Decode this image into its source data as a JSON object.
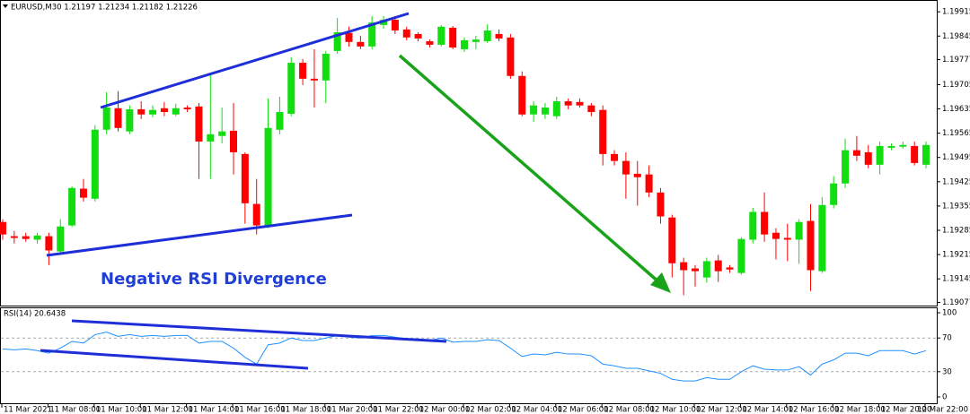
{
  "chart_data": [
    {
      "type": "candlestick",
      "title": "EURUSD,M30  1.21197 1.21234 1.21182 1.21226",
      "annotation": "Negative RSI Divergence",
      "categories": [
        "11 Mar 2021",
        null,
        null,
        null,
        "11 Mar 08:00",
        null,
        null,
        null,
        "11 Mar 10:00",
        null,
        null,
        null,
        "11 Mar 12:00",
        null,
        null,
        null,
        "11 Mar 14:00",
        null,
        null,
        null,
        "11 Mar 16:00",
        null,
        null,
        null,
        "11 Mar 18:00",
        null,
        null,
        null,
        "11 Mar 20:00",
        null,
        null,
        null,
        "11 Mar 22:00",
        null,
        null,
        null,
        "12 Mar 00:00",
        null,
        null,
        null,
        "12 Mar 02:00",
        null,
        null,
        null,
        "12 Mar 04:00",
        null,
        null,
        null,
        "12 Mar 06:00",
        null,
        null,
        null,
        "12 Mar 08:00",
        null,
        null,
        null,
        "12 Mar 10:00",
        null,
        null,
        null,
        "12 Mar 12:00",
        null,
        null,
        null,
        "12 Mar 14:00",
        null,
        null,
        null,
        "12 Mar 16:00",
        null,
        null,
        null,
        "12 Mar 18:00",
        null,
        null,
        null,
        "12 Mar 20:00",
        null,
        null,
        null,
        "12 Mar 22:00"
      ],
      "open": [
        1.19309,
        1.19268,
        1.19268,
        1.19258,
        1.19268,
        1.19224,
        1.19299,
        1.19405,
        1.19376,
        1.19575,
        1.19637,
        1.1957,
        1.19634,
        1.19619,
        1.19637,
        1.19619,
        1.19639,
        1.19642,
        1.19541,
        1.19557,
        1.19572,
        1.19505,
        1.19361,
        1.19299,
        1.19575,
        1.19621,
        1.19768,
        1.19722,
        1.19717,
        1.19802,
        1.19854,
        1.19828,
        1.19815,
        1.19877,
        1.19892,
        1.19864,
        1.19851,
        1.1983,
        1.1982,
        1.19869,
        1.19807,
        1.19828,
        1.1983,
        1.19851,
        1.19841,
        1.1973,
        1.19619,
        1.19619,
        1.19614,
        1.19657,
        1.19655,
        1.19645,
        1.19632,
        1.19505,
        1.19485,
        1.19448,
        1.19446,
        1.19394,
        1.19322,
        1.19193,
        1.19175,
        1.19149,
        1.19198,
        1.19178,
        1.19162,
        1.19258,
        1.19338,
        1.19278,
        1.19263,
        1.19258,
        1.19312,
        1.19167,
        1.19358,
        1.1942,
        1.19516,
        1.1951,
        1.19474,
        1.19523,
        1.19526,
        1.19528,
        1.19474
      ],
      "high": [
        1.19317,
        1.19283,
        1.19278,
        1.19278,
        1.19278,
        1.19317,
        1.19412,
        1.19433,
        1.19588,
        1.19683,
        1.19686,
        1.19645,
        1.19657,
        1.19645,
        1.19655,
        1.1965,
        1.19645,
        1.19652,
        1.19735,
        1.19639,
        1.19652,
        1.1951,
        1.19433,
        1.19665,
        1.1967,
        1.19784,
        1.19779,
        1.19807,
        1.19802,
        1.19897,
        1.19872,
        1.19846,
        1.19903,
        1.19903,
        1.19903,
        1.19872,
        1.19856,
        1.19835,
        1.19877,
        1.19874,
        1.19841,
        1.19846,
        1.19879,
        1.19864,
        1.19851,
        1.19743,
        1.19657,
        1.19652,
        1.1967,
        1.19665,
        1.19665,
        1.19652,
        1.19645,
        1.19516,
        1.1951,
        1.19485,
        1.19472,
        1.19407,
        1.1933,
        1.19206,
        1.19185,
        1.19206,
        1.19214,
        1.19185,
        1.19265,
        1.1935,
        1.19394,
        1.19291,
        1.19304,
        1.19317,
        1.19361,
        1.19381,
        1.19441,
        1.19549,
        1.19557,
        1.19531,
        1.19541,
        1.19536,
        1.19541,
        1.19541,
        1.19541
      ],
      "low": [
        1.19258,
        1.19247,
        1.19252,
        1.19247,
        1.19185,
        1.19219,
        1.19294,
        1.19368,
        1.19368,
        1.19562,
        1.1957,
        1.19562,
        1.19606,
        1.19611,
        1.19614,
        1.19614,
        1.19626,
        1.19433,
        1.19433,
        1.19536,
        1.19446,
        1.19304,
        1.19273,
        1.19291,
        1.19562,
        1.19614,
        1.19704,
        1.19639,
        1.19652,
        1.19794,
        1.19815,
        1.19807,
        1.19807,
        1.19866,
        1.19851,
        1.19833,
        1.1983,
        1.19812,
        1.19815,
        1.19807,
        1.19799,
        1.19807,
        1.19825,
        1.1983,
        1.19722,
        1.19614,
        1.19598,
        1.19606,
        1.19606,
        1.19634,
        1.19639,
        1.19614,
        1.19472,
        1.19472,
        1.19376,
        1.19356,
        1.19381,
        1.19304,
        1.19149,
        1.19098,
        1.19123,
        1.19134,
        1.19136,
        1.19162,
        1.19157,
        1.19247,
        1.19252,
        1.19201,
        1.19196,
        1.19188,
        1.1911,
        1.19162,
        1.19348,
        1.19407,
        1.19485,
        1.19464,
        1.19446,
        1.19516,
        1.19521,
        1.19472,
        1.19464
      ],
      "close": [
        1.19273,
        1.19263,
        1.1926,
        1.1927,
        1.19227,
        1.19296,
        1.19407,
        1.19379,
        1.19575,
        1.19639,
        1.1958,
        1.19634,
        1.19619,
        1.19632,
        1.19626,
        1.19637,
        1.19634,
        1.19541,
        1.19562,
        1.1957,
        1.1951,
        1.19363,
        1.19299,
        1.1958,
        1.19626,
        1.19768,
        1.19722,
        1.19717,
        1.19794,
        1.19856,
        1.19828,
        1.19815,
        1.19884,
        1.19892,
        1.19861,
        1.19841,
        1.19838,
        1.1982,
        1.19872,
        1.19812,
        1.19833,
        1.19835,
        1.19861,
        1.19838,
        1.1973,
        1.19619,
        1.19645,
        1.19639,
        1.19657,
        1.19645,
        1.19645,
        1.19626,
        1.19505,
        1.19485,
        1.19446,
        1.19438,
        1.19394,
        1.19325,
        1.1919,
        1.1917,
        1.19167,
        1.19196,
        1.19167,
        1.19172,
        1.1926,
        1.19338,
        1.19273,
        1.1926,
        1.19258,
        1.19309,
        1.1917,
        1.19358,
        1.1942,
        1.19516,
        1.195,
        1.19474,
        1.19528,
        1.19528,
        1.19531,
        1.19479,
        1.19531
      ],
      "up_color": "#11dd11",
      "down_color": "#ff0000",
      "ylim": [
        1.19068,
        1.19949
      ],
      "yticks": [
        1.19915,
        1.19845,
        1.19777,
        1.19705,
        1.19635,
        1.19565,
        1.19495,
        1.19425,
        1.19355,
        1.19285,
        1.19215,
        1.19145,
        1.19077
      ]
    },
    {
      "type": "line",
      "title": "RSI(14) 20.6438",
      "values": [
        57,
        56,
        57,
        55,
        52,
        58,
        66,
        64,
        74,
        77,
        72,
        74,
        72,
        73,
        72,
        73,
        73,
        64,
        66,
        66,
        58,
        47,
        39,
        62,
        64,
        70,
        67,
        67,
        70,
        73,
        71,
        70,
        73,
        73,
        71,
        69,
        69,
        67,
        70,
        65,
        66,
        66,
        68,
        67,
        58,
        48,
        51,
        50,
        53,
        51,
        51,
        49,
        39,
        37,
        34,
        34,
        31,
        28,
        21,
        19,
        19,
        23,
        21,
        21,
        30,
        37,
        33,
        32,
        32,
        36,
        26,
        39,
        44,
        52,
        52,
        49,
        55,
        55,
        55,
        51,
        55
      ],
      "color": "#1e90ff",
      "levels": [
        70,
        30
      ],
      "ylim": [
        0,
        100
      ],
      "yticks": [
        100,
        70,
        30,
        0
      ]
    }
  ]
}
